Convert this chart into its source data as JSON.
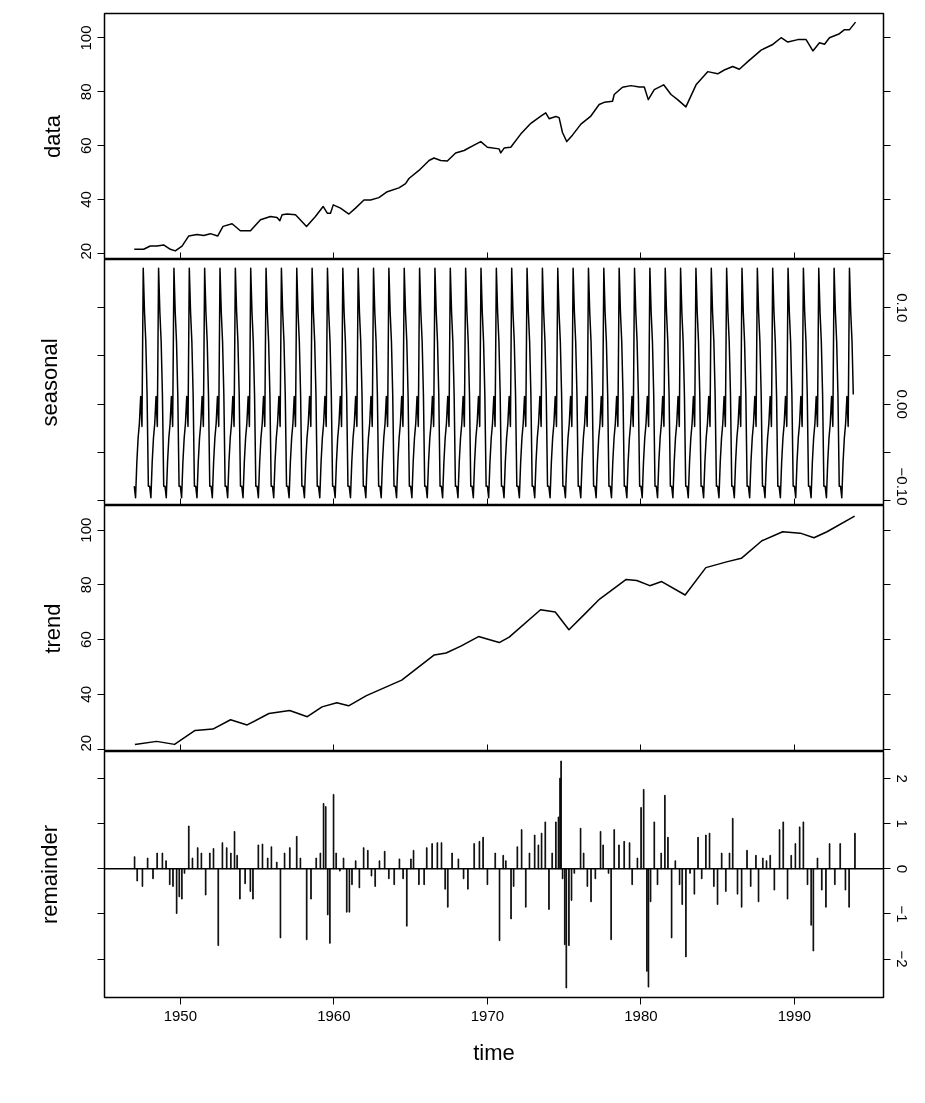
{
  "chart_data": [
    {
      "type": "line",
      "ylabel": "data",
      "color": "#000000",
      "xlim": [
        1945.06,
        1995.8
      ],
      "xticks": [
        1950,
        1960,
        1970,
        1980,
        1990
      ],
      "ylim": [
        17.7,
        109.1
      ],
      "yticks": [
        20,
        40,
        60,
        80,
        100
      ],
      "tick_labels": "y",
      "x": [
        1947.0,
        1947.61,
        1948.04,
        1948.48,
        1948.91,
        1949.35,
        1949.67,
        1950.11,
        1950.54,
        1951.09,
        1951.52,
        1951.96,
        1952.43,
        1952.78,
        1953.37,
        1953.91,
        1954.57,
        1955.22,
        1955.87,
        1956.3,
        1956.48,
        1956.63,
        1956.96,
        1957.5,
        1958.22,
        1958.8,
        1959.3,
        1959.57,
        1959.78,
        1959.96,
        1960.43,
        1960.98,
        1961.41,
        1961.96,
        1962.39,
        1962.93,
        1963.48,
        1964.24,
        1964.67,
        1964.89,
        1965.54,
        1966.2,
        1966.52,
        1966.96,
        1967.39,
        1967.93,
        1968.48,
        1969.13,
        1969.57,
        1970.0,
        1970.76,
        1970.87,
        1971.09,
        1971.52,
        1972.17,
        1972.83,
        1973.48,
        1973.8,
        1974.02,
        1974.46,
        1974.67,
        1974.89,
        1975.17,
        1975.54,
        1976.09,
        1976.74,
        1977.28,
        1977.61,
        1978.15,
        1978.26,
        1978.8,
        1979.35,
        1979.89,
        1980.22,
        1980.48,
        1980.87,
        1981.48,
        1981.96,
        1982.39,
        1982.93,
        1983.59,
        1984.35,
        1985.0,
        1985.43,
        1985.98,
        1986.41,
        1986.96,
        1987.83,
        1988.59,
        1989.13,
        1989.57,
        1990.22,
        1990.76,
        1991.2,
        1991.63,
        1991.96,
        1992.28,
        1992.93,
        1993.26,
        1993.59,
        1993.98
      ],
      "values": [
        21.5,
        21.5,
        22.7,
        22.7,
        23.1,
        21.5,
        20.9,
        22.7,
        26.4,
        27.0,
        26.6,
        27.3,
        26.4,
        30.0,
        31.0,
        28.4,
        28.4,
        32.5,
        33.7,
        33.3,
        32.1,
        34.3,
        34.6,
        34.3,
        30.0,
        33.7,
        37.4,
        34.9,
        34.9,
        38.0,
        36.8,
        34.6,
        36.8,
        39.8,
        39.8,
        40.7,
        42.9,
        44.3,
        45.9,
        47.8,
        50.8,
        54.5,
        55.4,
        54.5,
        54.3,
        57.3,
        58.2,
        60.2,
        61.5,
        59.4,
        58.8,
        57.3,
        59.1,
        59.4,
        64.3,
        68.3,
        71.0,
        72.2,
        70.0,
        70.8,
        70.4,
        64.9,
        61.5,
        63.9,
        68.0,
        71.0,
        75.3,
        76.1,
        76.5,
        79.0,
        81.7,
        82.3,
        81.8,
        81.8,
        77.1,
        80.8,
        82.6,
        79.0,
        77.1,
        74.4,
        82.6,
        87.5,
        86.7,
        88.1,
        89.4,
        88.4,
        91.2,
        95.5,
        97.6,
        100.1,
        98.5,
        99.4,
        99.4,
        95.2,
        98.2,
        97.7,
        100.1,
        101.6,
        103.1,
        103.1,
        105.9
      ]
    },
    {
      "type": "line",
      "ylabel": "seasonal",
      "xlim": [
        1945.06,
        1995.8
      ],
      "xticks": [
        1950,
        1960,
        1970,
        1980,
        1990
      ],
      "y2lim": [
        -0.105,
        0.15
      ],
      "y2ticks": [
        {
          "value": -0.1,
          "label": "−0.10"
        },
        {
          "value": -0.05,
          "label": null
        },
        {
          "value": 0,
          "label": "0.00"
        },
        {
          "value": 0.05,
          "label": null
        },
        {
          "value": 0.1,
          "label": "0.10"
        }
      ],
      "tick_labels": "y",
      "x": [
        1947,
        1947.083,
        1947.167,
        1947.25,
        1947.333,
        1947.417,
        1947.5,
        1947.583,
        1947.667,
        1947.75,
        1947.833,
        1947.917,
        1948,
        1948.083,
        1948.167,
        1948.25,
        1948.333,
        1948.417,
        1948.5,
        1948.583,
        1948.667,
        1948.75,
        1948.833,
        1948.917,
        1949,
        1949.083,
        1949.167,
        1949.25,
        1949.333,
        1949.417,
        1949.5,
        1949.583,
        1949.667,
        1949.75,
        1949.833,
        1949.917,
        1950,
        1950.083,
        1950.167,
        1950.25,
        1950.333,
        1950.417,
        1950.5,
        1950.583,
        1950.667,
        1950.75,
        1950.833,
        1950.917,
        1951,
        1951.083,
        1951.167,
        1951.25,
        1951.333,
        1951.417,
        1951.5,
        1951.583,
        1951.667,
        1951.75,
        1951.833,
        1951.917,
        1952,
        1952.083,
        1952.167,
        1952.25,
        1952.333,
        1952.417,
        1952.5,
        1952.583,
        1952.667,
        1952.75,
        1952.833,
        1952.917,
        1953,
        1953.083,
        1953.167,
        1953.25,
        1953.333,
        1953.417,
        1953.5,
        1953.583,
        1953.667,
        1953.75,
        1953.833,
        1953.917,
        1954,
        1954.083,
        1954.167,
        1954.25,
        1954.333,
        1954.417,
        1954.5,
        1954.583,
        1954.667,
        1954.75,
        1954.833,
        1954.917,
        1955,
        1955.083,
        1955.167,
        1955.25,
        1955.333,
        1955.417,
        1955.5,
        1955.583,
        1955.667,
        1955.75,
        1955.833,
        1955.917,
        1956,
        1956.083,
        1956.167,
        1956.25,
        1956.333,
        1956.417,
        1956.5,
        1956.583,
        1956.667,
        1956.75,
        1956.833,
        1956.917,
        1957,
        1957.083,
        1957.167,
        1957.25,
        1957.333,
        1957.417,
        1957.5,
        1957.583,
        1957.667,
        1957.75,
        1957.833,
        1957.917,
        1958,
        1958.083,
        1958.167,
        1958.25,
        1958.333,
        1958.417,
        1958.5,
        1958.583,
        1958.667,
        1958.75,
        1958.833,
        1958.917,
        1959,
        1959.083,
        1959.167,
        1959.25,
        1959.333,
        1959.417,
        1959.5,
        1959.583,
        1959.667,
        1959.75,
        1959.833,
        1959.917,
        1960,
        1960.083,
        1960.167,
        1960.25,
        1960.333,
        1960.417,
        1960.5,
        1960.583,
        1960.667,
        1960.75,
        1960.833,
        1960.917,
        1961,
        1961.083,
        1961.167,
        1961.25,
        1961.333,
        1961.417,
        1961.5,
        1961.583,
        1961.667,
        1961.75,
        1961.833,
        1961.917,
        1962,
        1962.083,
        1962.167,
        1962.25,
        1962.333,
        1962.417,
        1962.5,
        1962.583,
        1962.667,
        1962.75,
        1962.833,
        1962.917,
        1963,
        1963.083,
        1963.167,
        1963.25,
        1963.333,
        1963.417,
        1963.5,
        1963.583,
        1963.667,
        1963.75,
        1963.833,
        1963.917,
        1964,
        1964.083,
        1964.167,
        1964.25,
        1964.333,
        1964.417,
        1964.5,
        1964.583,
        1964.667,
        1964.75,
        1964.833,
        1964.917,
        1965,
        1965.083,
        1965.167,
        1965.25,
        1965.333,
        1965.417,
        1965.5,
        1965.583,
        1965.667,
        1965.75,
        1965.833,
        1965.917,
        1966,
        1966.083,
        1966.167,
        1966.25,
        1966.333,
        1966.417,
        1966.5,
        1966.583,
        1966.667,
        1966.75,
        1966.833,
        1966.917,
        1967,
        1967.083,
        1967.167,
        1967.25,
        1967.333,
        1967.417,
        1967.5,
        1967.583,
        1967.667,
        1967.75,
        1967.833,
        1967.917,
        1968,
        1968.083,
        1968.167,
        1968.25,
        1968.333,
        1968.417,
        1968.5,
        1968.583,
        1968.667,
        1968.75,
        1968.833,
        1968.917,
        1969,
        1969.083,
        1969.167,
        1969.25,
        1969.333,
        1969.417,
        1969.5,
        1969.583,
        1969.667,
        1969.75,
        1969.833,
        1969.917,
        1970,
        1970.083,
        1970.167,
        1970.25,
        1970.333,
        1970.417,
        1970.5,
        1970.583,
        1970.667,
        1970.75,
        1970.833,
        1970.917,
        1971,
        1971.083,
        1971.167,
        1971.25,
        1971.333,
        1971.417,
        1971.5,
        1971.583,
        1971.667,
        1971.75,
        1971.833,
        1971.917,
        1972,
        1972.083,
        1972.167,
        1972.25,
        1972.333,
        1972.417,
        1972.5,
        1972.583,
        1972.667,
        1972.75,
        1972.833,
        1972.917,
        1973,
        1973.083,
        1973.167,
        1973.25,
        1973.333,
        1973.417,
        1973.5,
        1973.583,
        1973.667,
        1973.75,
        1973.833,
        1973.917,
        1974,
        1974.083,
        1974.167,
        1974.25,
        1974.333,
        1974.417,
        1974.5,
        1974.583,
        1974.667,
        1974.75,
        1974.833,
        1974.917,
        1975,
        1975.083,
        1975.167,
        1975.25,
        1975.333,
        1975.417,
        1975.5,
        1975.583,
        1975.667,
        1975.75,
        1975.833,
        1975.917,
        1976,
        1976.083,
        1976.167,
        1976.25,
        1976.333,
        1976.417,
        1976.5,
        1976.583,
        1976.667,
        1976.75,
        1976.833,
        1976.917,
        1977,
        1977.083,
        1977.167,
        1977.25,
        1977.333,
        1977.417,
        1977.5,
        1977.583,
        1977.667,
        1977.75,
        1977.833,
        1977.917,
        1978,
        1978.083,
        1978.167,
        1978.25,
        1978.333,
        1978.417,
        1978.5,
        1978.583,
        1978.667,
        1978.75,
        1978.833,
        1978.917,
        1979,
        1979.083,
        1979.167,
        1979.25,
        1979.333,
        1979.417,
        1979.5,
        1979.583,
        1979.667,
        1979.75,
        1979.833,
        1979.917,
        1980,
        1980.083,
        1980.167,
        1980.25,
        1980.333,
        1980.417,
        1980.5,
        1980.583,
        1980.667,
        1980.75,
        1980.833,
        1980.917,
        1981,
        1981.083,
        1981.167,
        1981.25,
        1981.333,
        1981.417,
        1981.5,
        1981.583,
        1981.667,
        1981.75,
        1981.833,
        1981.917,
        1982,
        1982.083,
        1982.167,
        1982.25,
        1982.333,
        1982.417,
        1982.5,
        1982.583,
        1982.667,
        1982.75,
        1982.833,
        1982.917,
        1983,
        1983.083,
        1983.167,
        1983.25,
        1983.333,
        1983.417,
        1983.5,
        1983.583,
        1983.667,
        1983.75,
        1983.833,
        1983.917,
        1984,
        1984.083,
        1984.167,
        1984.25,
        1984.333,
        1984.417,
        1984.5,
        1984.583,
        1984.667,
        1984.75,
        1984.833,
        1984.917,
        1985,
        1985.083,
        1985.167,
        1985.25,
        1985.333,
        1985.417,
        1985.5,
        1985.583,
        1985.667,
        1985.75,
        1985.833,
        1985.917,
        1986,
        1986.083,
        1986.167,
        1986.25,
        1986.333,
        1986.417,
        1986.5,
        1986.583,
        1986.667,
        1986.75,
        1986.833,
        1986.917,
        1987,
        1987.083,
        1987.167,
        1987.25,
        1987.333,
        1987.417,
        1987.5,
        1987.583,
        1987.667,
        1987.75,
        1987.833,
        1987.917,
        1988,
        1988.083,
        1988.167,
        1988.25,
        1988.333,
        1988.417,
        1988.5,
        1988.583,
        1988.667,
        1988.75,
        1988.833,
        1988.917,
        1989,
        1989.083,
        1989.167,
        1989.25,
        1989.333,
        1989.417,
        1989.5,
        1989.583,
        1989.667,
        1989.75,
        1989.833,
        1989.917,
        1990,
        1990.083,
        1990.167,
        1990.25,
        1990.333,
        1990.417,
        1990.5,
        1990.583,
        1990.667,
        1990.75,
        1990.833,
        1990.917,
        1991,
        1991.083,
        1991.167,
        1991.25,
        1991.333,
        1991.417,
        1991.5,
        1991.583,
        1991.667,
        1991.75,
        1991.833,
        1991.917,
        1992,
        1992.083,
        1992.167,
        1992.25,
        1992.333,
        1992.417,
        1992.5,
        1992.583,
        1992.667,
        1992.75,
        1992.833,
        1992.917,
        1993,
        1993.083,
        1993.167,
        1993.25,
        1993.333,
        1993.417,
        1993.5,
        1993.583,
        1993.667,
        1993.75,
        1993.833
      ],
      "series": [
        {
          "color": "#000000",
          "axis": "y2",
          "values": [
            -0.085,
            -0.097,
            -0.06,
            -0.035,
            -0.02,
            0.008,
            -0.023,
            0.141,
            0.095,
            0.065,
            0.01,
            -0.085,
            -0.085,
            -0.097,
            -0.06,
            -0.035,
            -0.02,
            0.008,
            -0.023,
            0.141,
            0.095,
            0.065,
            0.01,
            -0.085,
            -0.085,
            -0.097,
            -0.06,
            -0.035,
            -0.02,
            0.008,
            -0.023,
            0.141,
            0.095,
            0.065,
            0.01,
            -0.085,
            -0.085,
            -0.097,
            -0.06,
            -0.035,
            -0.02,
            0.008,
            -0.023,
            0.141,
            0.095,
            0.065,
            0.01,
            -0.085,
            -0.085,
            -0.097,
            -0.06,
            -0.035,
            -0.02,
            0.008,
            -0.023,
            0.141,
            0.095,
            0.065,
            0.01,
            -0.085,
            -0.085,
            -0.097,
            -0.06,
            -0.035,
            -0.02,
            0.008,
            -0.023,
            0.141,
            0.095,
            0.065,
            0.01,
            -0.085,
            -0.085,
            -0.097,
            -0.06,
            -0.035,
            -0.02,
            0.008,
            -0.023,
            0.141,
            0.095,
            0.065,
            0.01,
            -0.085,
            -0.085,
            -0.097,
            -0.06,
            -0.035,
            -0.02,
            0.008,
            -0.023,
            0.141,
            0.095,
            0.065,
            0.01,
            -0.085,
            -0.085,
            -0.097,
            -0.06,
            -0.035,
            -0.02,
            0.008,
            -0.023,
            0.141,
            0.095,
            0.065,
            0.01,
            -0.085,
            -0.085,
            -0.097,
            -0.06,
            -0.035,
            -0.02,
            0.008,
            -0.023,
            0.141,
            0.095,
            0.065,
            0.01,
            -0.085,
            -0.085,
            -0.097,
            -0.06,
            -0.035,
            -0.02,
            0.008,
            -0.023,
            0.141,
            0.095,
            0.065,
            0.01,
            -0.085,
            -0.085,
            -0.097,
            -0.06,
            -0.035,
            -0.02,
            0.008,
            -0.023,
            0.141,
            0.095,
            0.065,
            0.01,
            -0.085,
            -0.085,
            -0.097,
            -0.06,
            -0.035,
            -0.02,
            0.008,
            -0.023,
            0.141,
            0.095,
            0.065,
            0.01,
            -0.085,
            -0.085,
            -0.097,
            -0.06,
            -0.035,
            -0.02,
            0.008,
            -0.023,
            0.141,
            0.095,
            0.065,
            0.01,
            -0.085,
            -0.085,
            -0.097,
            -0.06,
            -0.035,
            -0.02,
            0.008,
            -0.023,
            0.141,
            0.095,
            0.065,
            0.01,
            -0.085,
            -0.085,
            -0.097,
            -0.06,
            -0.035,
            -0.02,
            0.008,
            -0.023,
            0.141,
            0.095,
            0.065,
            0.01,
            -0.085,
            -0.085,
            -0.097,
            -0.06,
            -0.035,
            -0.02,
            0.008,
            -0.023,
            0.141,
            0.095,
            0.065,
            0.01,
            -0.085,
            -0.085,
            -0.097,
            -0.06,
            -0.035,
            -0.02,
            0.008,
            -0.023,
            0.141,
            0.095,
            0.065,
            0.01,
            -0.085,
            -0.085,
            -0.097,
            -0.06,
            -0.035,
            -0.02,
            0.008,
            -0.023,
            0.141,
            0.095,
            0.065,
            0.01,
            -0.085,
            -0.085,
            -0.097,
            -0.06,
            -0.035,
            -0.02,
            0.008,
            -0.023,
            0.141,
            0.095,
            0.065,
            0.01,
            -0.085,
            -0.085,
            -0.097,
            -0.06,
            -0.035,
            -0.02,
            0.008,
            -0.023,
            0.141,
            0.095,
            0.065,
            0.01,
            -0.085,
            -0.085,
            -0.097,
            -0.06,
            -0.035,
            -0.02,
            0.008,
            -0.023,
            0.141,
            0.095,
            0.065,
            0.01,
            -0.085,
            -0.085,
            -0.097,
            -0.06,
            -0.035,
            -0.02,
            0.008,
            -0.023,
            0.141,
            0.095,
            0.065,
            0.01,
            -0.085,
            -0.085,
            -0.097,
            -0.06,
            -0.035,
            -0.02,
            0.008,
            -0.023,
            0.141,
            0.095,
            0.065,
            0.01,
            -0.085,
            -0.085,
            -0.097,
            -0.06,
            -0.035,
            -0.02,
            0.008,
            -0.023,
            0.141,
            0.095,
            0.065,
            0.01,
            -0.085,
            -0.085,
            -0.097,
            -0.06,
            -0.035,
            -0.02,
            0.008,
            -0.023,
            0.141,
            0.095,
            0.065,
            0.01,
            -0.085,
            -0.085,
            -0.097,
            -0.06,
            -0.035,
            -0.02,
            0.008,
            -0.023,
            0.141,
            0.095,
            0.065,
            0.01,
            -0.085,
            -0.085,
            -0.097,
            -0.06,
            -0.035,
            -0.02,
            0.008,
            -0.023,
            0.141,
            0.095,
            0.065,
            0.01,
            -0.085,
            -0.085,
            -0.097,
            -0.06,
            -0.035,
            -0.02,
            0.008,
            -0.023,
            0.141,
            0.095,
            0.065,
            0.01,
            -0.085,
            -0.085,
            -0.097,
            -0.06,
            -0.035,
            -0.02,
            0.008,
            -0.023,
            0.141,
            0.095,
            0.065,
            0.01,
            -0.085,
            -0.085,
            -0.097,
            -0.06,
            -0.035,
            -0.02,
            0.008,
            -0.023,
            0.141,
            0.095,
            0.065,
            0.01,
            -0.085,
            -0.085,
            -0.097,
            -0.06,
            -0.035,
            -0.02,
            0.008,
            -0.023,
            0.141,
            0.095,
            0.065,
            0.01,
            -0.085,
            -0.085,
            -0.097,
            -0.06,
            -0.035,
            -0.02,
            0.008,
            -0.023,
            0.141,
            0.095,
            0.065,
            0.01,
            -0.085,
            -0.085,
            -0.097,
            -0.06,
            -0.035,
            -0.02,
            0.008,
            -0.023,
            0.141,
            0.095,
            0.065,
            0.01,
            -0.085,
            -0.085,
            -0.097,
            -0.06,
            -0.035,
            -0.02,
            0.008,
            -0.023,
            0.141,
            0.095,
            0.065,
            0.01,
            -0.085,
            -0.085,
            -0.097,
            -0.06,
            -0.035,
            -0.02,
            0.008,
            -0.023,
            0.141,
            0.095,
            0.065,
            0.01,
            -0.085,
            -0.085,
            -0.097,
            -0.06,
            -0.035,
            -0.02,
            0.008,
            -0.023,
            0.141,
            0.095,
            0.065,
            0.01,
            -0.085,
            -0.085,
            -0.097,
            -0.06,
            -0.035,
            -0.02,
            0.008,
            -0.023,
            0.141,
            0.095,
            0.065,
            0.01,
            -0.085,
            -0.085,
            -0.097,
            -0.06,
            -0.035,
            -0.02,
            0.008,
            -0.023,
            0.141,
            0.095,
            0.065,
            0.01,
            -0.085,
            -0.085,
            -0.097,
            -0.06,
            -0.035,
            -0.02,
            0.008,
            -0.023,
            0.141,
            0.095,
            0.065,
            0.01,
            -0.085,
            -0.085,
            -0.097,
            -0.06,
            -0.035,
            -0.02,
            0.008,
            -0.023,
            0.141,
            0.095,
            0.065,
            0.01,
            -0.085,
            -0.085,
            -0.097,
            -0.06,
            -0.035,
            -0.02,
            0.008,
            -0.023,
            0.141,
            0.095,
            0.065,
            0.01,
            -0.085,
            -0.085,
            -0.097,
            -0.06,
            -0.035,
            -0.02,
            0.008,
            -0.023,
            0.141,
            0.095,
            0.065,
            0.01,
            -0.085,
            -0.085,
            -0.097,
            -0.06,
            -0.035,
            -0.02,
            0.008,
            -0.023,
            0.141,
            0.095,
            0.065,
            0.01,
            -0.085,
            -0.085,
            -0.097,
            -0.06,
            -0.035,
            -0.02,
            0.008,
            -0.023,
            0.141,
            0.095,
            0.065,
            0.01,
            -0.085,
            -0.085,
            -0.097,
            -0.06,
            -0.035,
            -0.02,
            0.008,
            -0.023,
            0.141,
            0.095,
            0.065,
            0.01,
            -0.085,
            -0.085,
            -0.097,
            -0.06,
            -0.035,
            -0.02,
            0.008,
            -0.023,
            0.141,
            0.095,
            0.065,
            0.01
          ]
        }
      ]
    },
    {
      "type": "line",
      "ylabel": "trend",
      "color": "#000000",
      "xlim": [
        1945.06,
        1995.8
      ],
      "xticks": [
        1950,
        1960,
        1970,
        1980,
        1990
      ],
      "ylim": [
        19.1,
        109.0
      ],
      "yticks": [
        20,
        40,
        60,
        80,
        100
      ],
      "tick_labels": "y",
      "x": [
        1947.04,
        1948.46,
        1949.62,
        1950.96,
        1952.12,
        1953.27,
        1954.35,
        1955.77,
        1957.12,
        1958.27,
        1959.23,
        1960.19,
        1960.96,
        1962.12,
        1964.42,
        1966.54,
        1967.31,
        1968.27,
        1969.42,
        1970.77,
        1971.42,
        1973.46,
        1974.42,
        1975.31,
        1976.35,
        1977.31,
        1978.08,
        1979.04,
        1979.73,
        1980.58,
        1981.35,
        1982.88,
        1984.23,
        1985.58,
        1986.54,
        1987.88,
        1989.23,
        1990.38,
        1991.27,
        1992.12,
        1993.92
      ],
      "values": [
        21.7,
        22.8,
        21.7,
        26.8,
        27.3,
        30.7,
        28.8,
        33.0,
        34.1,
        31.8,
        35.4,
        36.9,
        35.8,
        39.5,
        45.2,
        54.4,
        55.1,
        57.6,
        61.1,
        58.9,
        60.9,
        70.9,
        70.1,
        63.6,
        69.4,
        74.8,
        78.0,
        82.0,
        81.6,
        79.7,
        81.2,
        76.3,
        86.3,
        88.4,
        89.7,
        96.1,
        99.4,
        98.9,
        97.2,
        99.4,
        105.1
      ]
    },
    {
      "type": "bar",
      "ylabel": "remainder",
      "xlabel": "time",
      "xlim": [
        1945.06,
        1995.8
      ],
      "xticks": [
        1950,
        1960,
        1970,
        1980,
        1990
      ],
      "y2lim": [
        -2.85,
        2.6
      ],
      "y2ticks": [
        {
          "value": -2,
          "label": "−2"
        },
        {
          "value": -1,
          "label": "−1"
        },
        0,
        1,
        2
      ],
      "ref_lines": [
        {
          "axis": "y2",
          "value": 0,
          "color": "#000000"
        }
      ],
      "x": [
        1947.02,
        1947.19,
        1947.53,
        1947.87,
        1948.22,
        1948.49,
        1948.83,
        1949.07,
        1949.31,
        1949.52,
        1949.76,
        1949.93,
        1950.1,
        1950.27,
        1950.55,
        1950.79,
        1951.13,
        1951.37,
        1951.65,
        1951.92,
        1952.16,
        1952.47,
        1952.74,
        1953.02,
        1953.29,
        1953.53,
        1953.7,
        1953.88,
        1954.22,
        1954.56,
        1954.73,
        1955.08,
        1955.35,
        1955.69,
        1955.93,
        1956.28,
        1956.52,
        1956.79,
        1957.13,
        1957.58,
        1957.82,
        1958.23,
        1958.51,
        1958.85,
        1959.12,
        1959.33,
        1959.47,
        1959.6,
        1959.74,
        1959.98,
        1960.15,
        1960.39,
        1960.63,
        1960.84,
        1961.01,
        1961.18,
        1961.42,
        1961.66,
        1961.94,
        1962.21,
        1962.45,
        1962.69,
        1962.97,
        1963.31,
        1963.58,
        1963.93,
        1964.27,
        1964.51,
        1964.75,
        1965.02,
        1965.19,
        1965.54,
        1965.88,
        1966.05,
        1966.4,
        1966.74,
        1967.01,
        1967.25,
        1967.42,
        1967.7,
        1968.11,
        1968.45,
        1968.73,
        1969.14,
        1969.48,
        1969.72,
        1970.0,
        1970.51,
        1970.79,
        1971.03,
        1971.2,
        1971.54,
        1971.71,
        1971.95,
        1972.23,
        1972.5,
        1972.74,
        1973.08,
        1973.32,
        1973.53,
        1973.77,
        1974.01,
        1974.22,
        1974.46,
        1974.63,
        1974.73,
        1974.8,
        1974.9,
        1975.04,
        1975.14,
        1975.31,
        1975.48,
        1975.66,
        1976.07,
        1976.27,
        1976.51,
        1976.75,
        1977.03,
        1977.37,
        1977.54,
        1977.89,
        1978.06,
        1978.26,
        1978.57,
        1978.91,
        1979.26,
        1979.43,
        1979.77,
        1980.01,
        1980.18,
        1980.39,
        1980.49,
        1980.63,
        1980.87,
        1981.08,
        1981.32,
        1981.56,
        1981.76,
        1982.0,
        1982.24,
        1982.52,
        1982.69,
        1982.93,
        1983.2,
        1983.48,
        1983.72,
        1983.96,
        1984.23,
        1984.47,
        1984.75,
        1984.99,
        1985.26,
        1985.53,
        1985.77,
        1985.98,
        1986.29,
        1986.56,
        1986.91,
        1987.15,
        1987.49,
        1987.66,
        1987.94,
        1988.18,
        1988.42,
        1988.69,
        1989.03,
        1989.27,
        1989.55,
        1989.79,
        1990.06,
        1990.34,
        1990.58,
        1990.85,
        1991.09,
        1991.23,
        1991.5,
        1991.78,
        1992.05,
        1992.29,
        1992.63,
        1992.98,
        1993.32,
        1993.56,
        1993.94
      ],
      "series": [
        {
          "color": "#000000",
          "axis": "y2",
          "values": [
            0.27,
            -0.27,
            -0.39,
            0.24,
            -0.22,
            0.35,
            0.35,
            0.18,
            -0.35,
            -0.39,
            -0.99,
            -0.62,
            -0.67,
            -0.1,
            0.95,
            0.24,
            0.47,
            0.35,
            -0.58,
            0.35,
            0.45,
            -1.7,
            0.58,
            0.47,
            0.35,
            0.83,
            0.3,
            -0.67,
            -0.33,
            -0.5,
            -0.67,
            0.53,
            0.55,
            0.24,
            0.49,
            0.15,
            -1.53,
            0.35,
            0.47,
            0.72,
            0.24,
            -1.57,
            -0.67,
            0.24,
            0.35,
            1.45,
            1.38,
            -1.02,
            -1.65,
            1.65,
            0.35,
            -0.05,
            0.24,
            -0.96,
            -0.96,
            -0.35,
            0.18,
            -0.42,
            0.47,
            0.41,
            -0.16,
            -0.39,
            0.18,
            0.39,
            -0.22,
            -0.35,
            0.22,
            -0.22,
            -1.27,
            0.22,
            0.41,
            -0.35,
            -0.35,
            0.47,
            0.56,
            0.58,
            0.58,
            -0.45,
            -0.85,
            0.35,
            0.22,
            -0.22,
            -0.45,
            0.56,
            0.61,
            0.7,
            -0.35,
            0.35,
            -1.59,
            0.3,
            0.18,
            -1.11,
            -0.39,
            0.49,
            0.87,
            -0.85,
            0.35,
            0.75,
            0.53,
            0.79,
            1.04,
            -0.9,
            0.35,
            1.04,
            1.15,
            2.01,
            2.39,
            -0.22,
            -1.68,
            -2.64,
            -1.7,
            -0.7,
            -0.1,
            0.9,
            0.35,
            -0.39,
            -0.73,
            -0.22,
            0.83,
            0.53,
            -0.1,
            -1.57,
            0.87,
            0.53,
            0.61,
            0.58,
            -0.35,
            0.24,
            1.36,
            1.76,
            -2.27,
            -2.62,
            -0.73,
            1.04,
            -0.35,
            0.35,
            1.63,
            0.7,
            -1.53,
            0.18,
            -0.35,
            -0.79,
            -1.95,
            -0.1,
            -0.56,
            0.7,
            -0.22,
            0.75,
            0.79,
            -0.39,
            -0.79,
            0.35,
            -0.5,
            0.35,
            1.12,
            -0.56,
            -0.85,
            0.41,
            -0.39,
            0.3,
            -0.73,
            0.24,
            0.18,
            0.3,
            -0.47,
            0.87,
            1.04,
            -0.67,
            0.3,
            0.56,
            0.93,
            1.04,
            -0.35,
            -1.25,
            -1.82,
            0.24,
            -0.47,
            -0.85,
            0.56,
            -0.35,
            0.56,
            -0.47,
            -0.85,
            0.79
          ]
        }
      ]
    }
  ]
}
